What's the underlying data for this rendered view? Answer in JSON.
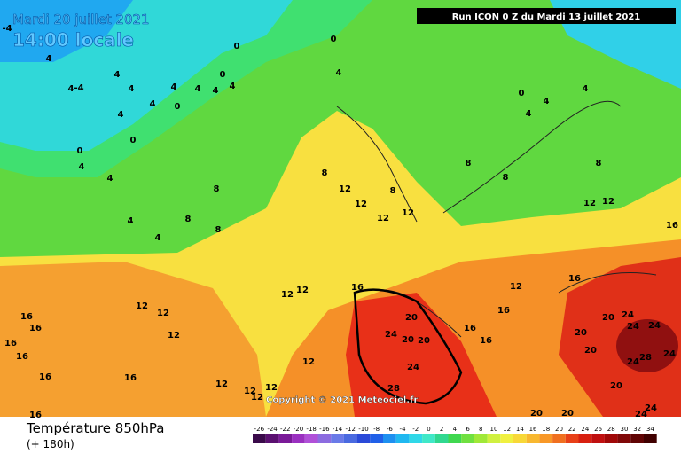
{
  "header": {
    "date": "Mardi 20 juillet 2021",
    "time": "14:00 locale",
    "run": "Run ICON 0 Z du Mardi 13 juillet 2021"
  },
  "copyright": "Copyright © 2021 Meteociel.fr",
  "footer": {
    "title": "Température 850hPa",
    "lead": "(+ 180h)"
  },
  "legend": {
    "ticks": [
      -26,
      -24,
      -22,
      -20,
      -18,
      -16,
      -14,
      -12,
      -10,
      -8,
      -6,
      -4,
      -2,
      0,
      2,
      4,
      6,
      8,
      10,
      12,
      14,
      16,
      18,
      20,
      22,
      24,
      26,
      28,
      30,
      32,
      34
    ],
    "colors": [
      "#3a0a4a",
      "#5a1070",
      "#7a1a98",
      "#9a30c0",
      "#b050d8",
      "#8c6ce0",
      "#6a7ae8",
      "#4a6ae0",
      "#2a4ad8",
      "#2060e8",
      "#1e90f0",
      "#20b8f0",
      "#30d8e8",
      "#40e8c8",
      "#30d890",
      "#40d850",
      "#70e040",
      "#a0e838",
      "#d0f040",
      "#f0f040",
      "#f8d838",
      "#f8b830",
      "#f89828",
      "#f07020",
      "#e84018",
      "#d82010",
      "#c01010",
      "#a00808",
      "#800808",
      "#600404",
      "#400000"
    ]
  },
  "contour_labels": [
    0,
    0,
    0,
    0,
    0,
    0,
    0,
    4,
    4,
    4,
    4,
    4,
    4,
    4,
    4,
    4,
    4,
    4,
    4,
    4,
    4,
    4,
    4,
    4,
    4,
    -4,
    -4,
    8,
    8,
    8,
    8,
    8,
    8,
    8,
    8,
    12,
    12,
    12,
    12,
    12,
    12,
    12,
    12,
    12,
    12,
    12,
    12,
    12,
    12,
    12,
    12,
    12,
    16,
    16,
    16,
    16,
    16,
    16,
    16,
    16,
    16,
    16,
    16,
    16,
    16,
    20,
    20,
    20,
    20,
    20,
    20,
    20,
    20,
    20,
    24,
    24,
    24,
    24,
    24,
    24,
    24,
    24,
    24,
    28,
    28
  ]
}
